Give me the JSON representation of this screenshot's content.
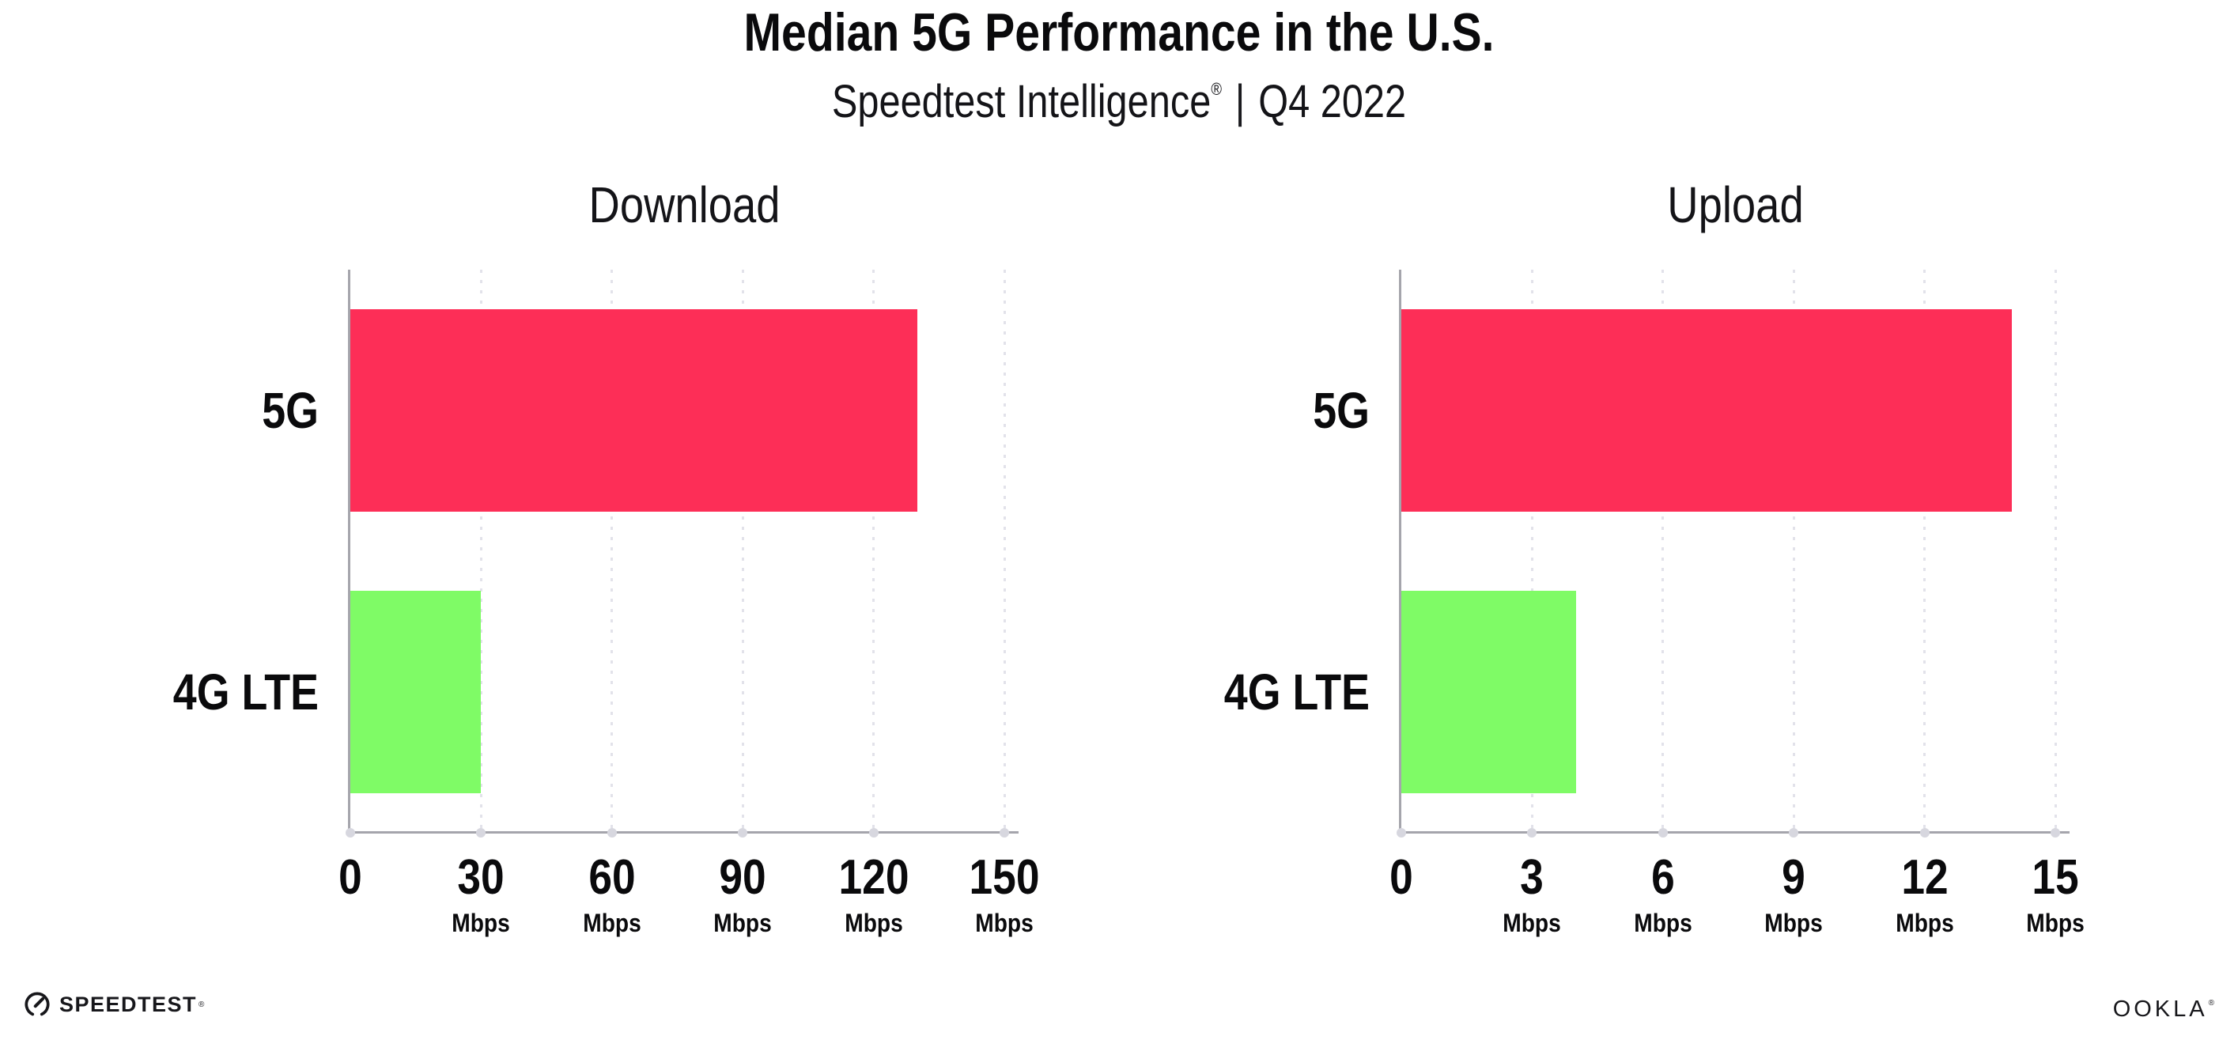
{
  "header": {
    "title": "Median 5G Performance in the U.S.",
    "subtitle_brand": "Speedtest Intelligence",
    "subtitle_reg": "®",
    "subtitle_separator": "|",
    "subtitle_period": "Q4 2022"
  },
  "colors": {
    "bar_5g": "#fd2e57",
    "bar_4g_lte": "#7ffb66",
    "axis_line": "#a5a5ac",
    "gridline": "#e2e2ea",
    "tick_dot": "#d7d7df",
    "text": "#0a0a0c"
  },
  "chart_data": [
    {
      "type": "bar",
      "orientation": "horizontal",
      "title": "Download",
      "categories": [
        "5G",
        "4G LTE"
      ],
      "values": [
        130,
        30
      ],
      "value_unit": "Mbps",
      "xlim": [
        0,
        150
      ],
      "xticks": [
        0,
        30,
        60,
        90,
        120,
        150
      ],
      "tick_unit_label": "Mbps",
      "grid": "dotted-vertical",
      "legend": "none",
      "bar_colors": [
        "#fd2e57",
        "#7ffb66"
      ]
    },
    {
      "type": "bar",
      "orientation": "horizontal",
      "title": "Upload",
      "categories": [
        "5G",
        "4G LTE"
      ],
      "values": [
        14,
        4
      ],
      "value_unit": "Mbps",
      "xlim": [
        0,
        15
      ],
      "xticks": [
        0,
        3,
        6,
        9,
        12,
        15
      ],
      "tick_unit_label": "Mbps",
      "grid": "dotted-vertical",
      "legend": "none",
      "bar_colors": [
        "#fd2e57",
        "#7ffb66"
      ]
    }
  ],
  "footer": {
    "speedtest_logo_text": "SPEEDTEST",
    "speedtest_logo_reg": "®",
    "ookla_logo_text": "OOKLA",
    "ookla_logo_reg": "®"
  }
}
